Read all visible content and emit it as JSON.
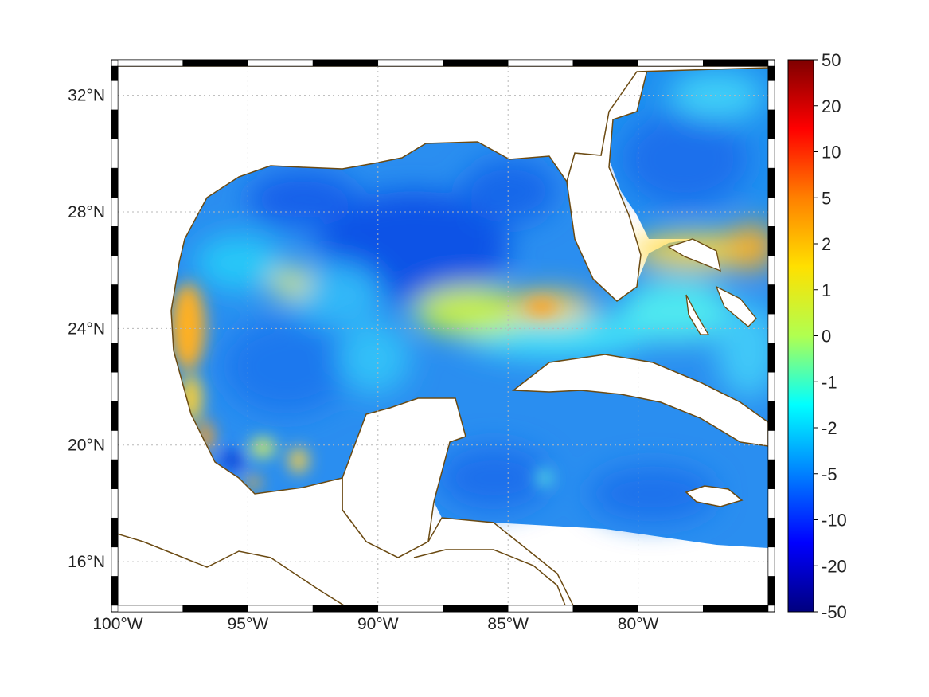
{
  "map": {
    "type": "heatmap",
    "lon_range": [
      -100,
      -75
    ],
    "lat_range": [
      14.5,
      33
    ],
    "lon_ticks": [
      {
        "value": -100,
        "label": "100°W"
      },
      {
        "value": -95,
        "label": "95°W"
      },
      {
        "value": -90,
        "label": "90°W"
      },
      {
        "value": -85,
        "label": "85°W"
      },
      {
        "value": -80,
        "label": "80°W"
      }
    ],
    "lat_ticks": [
      {
        "value": 16,
        "label": "16°N"
      },
      {
        "value": 20,
        "label": "20°N"
      },
      {
        "value": 24,
        "label": "24°N"
      },
      {
        "value": 28,
        "label": "28°N"
      },
      {
        "value": 32,
        "label": "32°N"
      }
    ],
    "grid": true,
    "colormap": "jet",
    "coastline_color": "#6b4a12",
    "land_color": "#ffffff"
  },
  "colorbar": {
    "labels": [
      "50",
      "20",
      "10",
      "5",
      "2",
      "1",
      "0",
      "-1",
      "-2",
      "-5",
      "-10",
      "-20",
      "-50"
    ],
    "stops": [
      "#7f0000",
      "#ff0000",
      "#ff8000",
      "#ffe000",
      "#b0ff50",
      "#00ffff",
      "#0080ff",
      "#0000ff",
      "#00007f"
    ]
  }
}
